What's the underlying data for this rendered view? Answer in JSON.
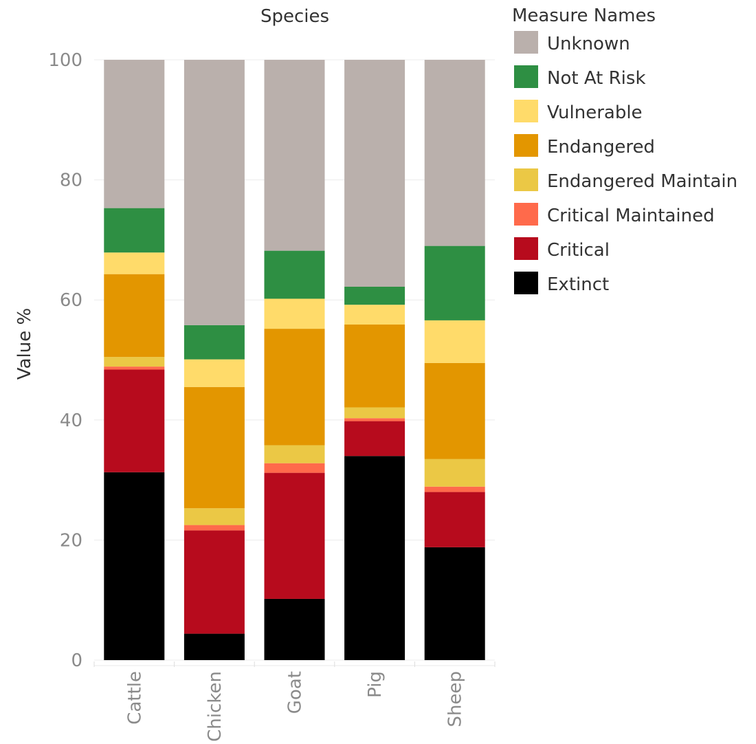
{
  "chart_data": {
    "type": "bar",
    "stacked": true,
    "title": "Species",
    "ylabel": "Value %",
    "ylim": [
      0,
      100
    ],
    "yticks": [
      0,
      20,
      40,
      60,
      80,
      100
    ],
    "grid": true,
    "legend_position": "right",
    "legend_title": "Measure Names",
    "categories": [
      "Cattle",
      "Chicken",
      "Goat",
      "Pig",
      "Sheep"
    ],
    "series": [
      {
        "name": "Extinct",
        "color": "#000000",
        "values": [
          31.3,
          4.4,
          10.2,
          34.0,
          18.8
        ]
      },
      {
        "name": "Critical",
        "color": "#b70b1d",
        "values": [
          17.1,
          17.2,
          21.0,
          5.8,
          9.2
        ]
      },
      {
        "name": "Critical Maintained",
        "color": "#ff6a4b",
        "values": [
          0.5,
          0.9,
          1.6,
          0.5,
          0.9
        ]
      },
      {
        "name": "Endangered Maintain",
        "color": "#ebc845",
        "values": [
          1.6,
          2.8,
          3.0,
          1.8,
          4.6
        ]
      },
      {
        "name": "Endangered",
        "color": "#e39600",
        "values": [
          13.8,
          20.2,
          19.4,
          13.8,
          16.0
        ]
      },
      {
        "name": "Vulnerable",
        "color": "#ffdb6a",
        "values": [
          3.6,
          4.6,
          5.0,
          3.3,
          7.1
        ]
      },
      {
        "name": "Not At Risk",
        "color": "#2e8f43",
        "values": [
          7.4,
          5.7,
          8.0,
          3.0,
          12.4
        ]
      },
      {
        "name": "Unknown",
        "color": "#bab0ac",
        "values": [
          24.7,
          44.2,
          31.8,
          37.8,
          31.0
        ]
      }
    ],
    "legend_order": [
      "Unknown",
      "Not At Risk",
      "Vulnerable",
      "Endangered",
      "Endangered Maintain",
      "Critical Maintained",
      "Critical",
      "Extinct"
    ]
  }
}
